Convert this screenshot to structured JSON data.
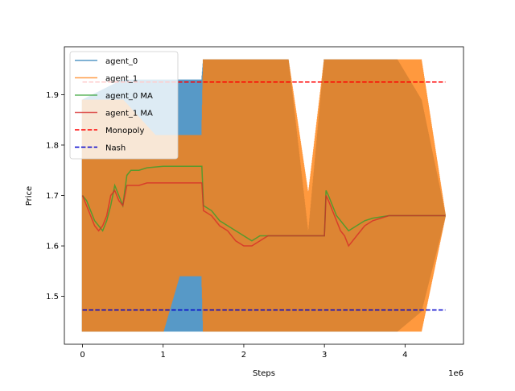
{
  "chart_data": {
    "type": "line",
    "title": "",
    "xlabel": "Steps",
    "ylabel": "Price",
    "x_offset_label": "1e6",
    "xlim": [
      -0.225,
      4.725
    ],
    "ylim": [
      1.405,
      1.995
    ],
    "x_ticks": [
      0,
      1,
      2,
      3,
      4
    ],
    "x_tick_labels": [
      "0",
      "1",
      "2",
      "3",
      "4"
    ],
    "y_ticks": [
      1.5,
      1.6,
      1.7,
      1.8,
      1.9
    ],
    "y_tick_labels": [
      "1.5",
      "1.6",
      "1.7",
      "1.8",
      "1.9"
    ],
    "grid": false,
    "legend_position": "top-left",
    "series": [
      {
        "name": "agent_0",
        "color": "#1f77b4",
        "style": "solid-oscillating",
        "x": [
          0.0,
          0.5,
          0.9,
          1.0,
          1.2,
          1.48,
          1.5,
          2.0,
          2.2,
          2.55,
          2.8,
          3.0,
          3.5,
          3.9,
          4.2,
          4.5
        ],
        "y_min": [
          1.43,
          1.43,
          1.43,
          1.43,
          1.43,
          1.43,
          1.43,
          1.43,
          1.43,
          1.43,
          1.43,
          1.43,
          1.43,
          1.43,
          1.47,
          1.66
        ],
        "y_max": [
          1.89,
          1.93,
          1.93,
          1.93,
          1.93,
          1.93,
          1.97,
          1.97,
          1.97,
          1.97,
          1.62,
          1.97,
          1.97,
          1.97,
          1.89,
          1.66
        ]
      },
      {
        "name": "agent_1",
        "color": "#ff7f0e",
        "style": "solid-oscillating",
        "x": [
          0.0,
          0.5,
          0.9,
          1.0,
          1.2,
          1.48,
          1.5,
          2.0,
          2.2,
          2.55,
          2.8,
          3.0,
          3.5,
          3.9,
          4.2,
          4.5
        ],
        "y_min": [
          1.43,
          1.43,
          1.43,
          1.43,
          1.54,
          1.54,
          1.43,
          1.43,
          1.43,
          1.43,
          1.43,
          1.43,
          1.43,
          1.43,
          1.43,
          1.66
        ],
        "y_max": [
          1.89,
          1.89,
          1.82,
          1.82,
          1.82,
          1.82,
          1.97,
          1.97,
          1.97,
          1.97,
          1.7,
          1.97,
          1.97,
          1.97,
          1.97,
          1.66
        ]
      },
      {
        "name": "agent_0 MA",
        "color": "#2ca02c",
        "style": "solid",
        "x": [
          0.0,
          0.05,
          0.1,
          0.15,
          0.2,
          0.25,
          0.3,
          0.35,
          0.4,
          0.45,
          0.5,
          0.55,
          0.6,
          0.7,
          0.8,
          1.0,
          1.2,
          1.48,
          1.5,
          1.6,
          1.7,
          1.8,
          1.9,
          2.0,
          2.1,
          2.2,
          2.3,
          2.5,
          2.8,
          3.0,
          3.02,
          3.05,
          3.1,
          3.15,
          3.2,
          3.25,
          3.3,
          3.4,
          3.5,
          3.6,
          3.8,
          4.0,
          4.2,
          4.5
        ],
        "y": [
          1.7,
          1.69,
          1.67,
          1.65,
          1.64,
          1.63,
          1.65,
          1.68,
          1.72,
          1.7,
          1.68,
          1.74,
          1.75,
          1.75,
          1.755,
          1.758,
          1.758,
          1.758,
          1.68,
          1.67,
          1.65,
          1.64,
          1.63,
          1.62,
          1.61,
          1.62,
          1.62,
          1.62,
          1.62,
          1.62,
          1.71,
          1.7,
          1.68,
          1.66,
          1.65,
          1.64,
          1.63,
          1.64,
          1.65,
          1.655,
          1.66,
          1.66,
          1.66,
          1.66
        ]
      },
      {
        "name": "agent_1 MA",
        "color": "#d62728",
        "style": "solid",
        "x": [
          0.0,
          0.05,
          0.1,
          0.15,
          0.2,
          0.25,
          0.3,
          0.35,
          0.4,
          0.45,
          0.5,
          0.55,
          0.6,
          0.7,
          0.8,
          1.0,
          1.2,
          1.48,
          1.5,
          1.6,
          1.7,
          1.8,
          1.9,
          2.0,
          2.1,
          2.2,
          2.3,
          2.5,
          2.8,
          3.0,
          3.02,
          3.05,
          3.1,
          3.15,
          3.2,
          3.25,
          3.3,
          3.4,
          3.5,
          3.6,
          3.8,
          4.0,
          4.2,
          4.5
        ],
        "y": [
          1.7,
          1.68,
          1.66,
          1.64,
          1.63,
          1.64,
          1.66,
          1.7,
          1.71,
          1.69,
          1.68,
          1.72,
          1.72,
          1.72,
          1.725,
          1.725,
          1.725,
          1.725,
          1.67,
          1.66,
          1.64,
          1.63,
          1.61,
          1.6,
          1.6,
          1.61,
          1.62,
          1.62,
          1.62,
          1.62,
          1.7,
          1.69,
          1.67,
          1.65,
          1.63,
          1.62,
          1.6,
          1.62,
          1.64,
          1.65,
          1.66,
          1.66,
          1.66,
          1.66
        ]
      },
      {
        "name": "Monopoly",
        "color": "#ff0000",
        "style": "dashed",
        "x": [
          0.0,
          4.5
        ],
        "y": [
          1.925,
          1.925
        ]
      },
      {
        "name": "Nash",
        "color": "#0000cc",
        "style": "dashed",
        "x": [
          0.0,
          4.5
        ],
        "y": [
          1.473,
          1.473
        ]
      }
    ]
  }
}
